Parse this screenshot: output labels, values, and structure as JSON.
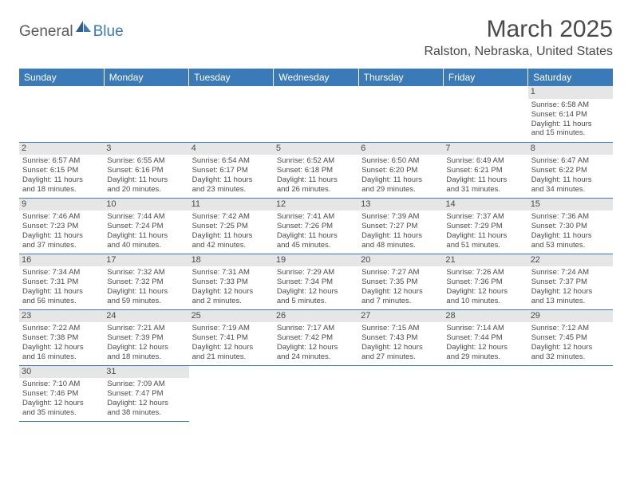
{
  "logo": {
    "general": "General",
    "blue": "Blue"
  },
  "title": "March 2025",
  "location": "Ralston, Nebraska, United States",
  "colors": {
    "header_bg": "#3a7ab8",
    "header_fg": "#ffffff",
    "daynum_bg": "#e6e6e6",
    "border": "#3a7ab8",
    "text": "#4a4a4a"
  },
  "typography": {
    "title_fontsize": 30,
    "location_fontsize": 16,
    "dayheader_fontsize": 12,
    "cell_fontsize": 9.5
  },
  "day_headers": [
    "Sunday",
    "Monday",
    "Tuesday",
    "Wednesday",
    "Thursday",
    "Friday",
    "Saturday"
  ],
  "weeks": [
    [
      null,
      null,
      null,
      null,
      null,
      null,
      {
        "n": "1",
        "sunrise": "6:58 AM",
        "sunset": "6:14 PM",
        "day_h": "11",
        "day_m": "15"
      }
    ],
    [
      {
        "n": "2",
        "sunrise": "6:57 AM",
        "sunset": "6:15 PM",
        "day_h": "11",
        "day_m": "18"
      },
      {
        "n": "3",
        "sunrise": "6:55 AM",
        "sunset": "6:16 PM",
        "day_h": "11",
        "day_m": "20"
      },
      {
        "n": "4",
        "sunrise": "6:54 AM",
        "sunset": "6:17 PM",
        "day_h": "11",
        "day_m": "23"
      },
      {
        "n": "5",
        "sunrise": "6:52 AM",
        "sunset": "6:18 PM",
        "day_h": "11",
        "day_m": "26"
      },
      {
        "n": "6",
        "sunrise": "6:50 AM",
        "sunset": "6:20 PM",
        "day_h": "11",
        "day_m": "29"
      },
      {
        "n": "7",
        "sunrise": "6:49 AM",
        "sunset": "6:21 PM",
        "day_h": "11",
        "day_m": "31"
      },
      {
        "n": "8",
        "sunrise": "6:47 AM",
        "sunset": "6:22 PM",
        "day_h": "11",
        "day_m": "34"
      }
    ],
    [
      {
        "n": "9",
        "sunrise": "7:46 AM",
        "sunset": "7:23 PM",
        "day_h": "11",
        "day_m": "37"
      },
      {
        "n": "10",
        "sunrise": "7:44 AM",
        "sunset": "7:24 PM",
        "day_h": "11",
        "day_m": "40"
      },
      {
        "n": "11",
        "sunrise": "7:42 AM",
        "sunset": "7:25 PM",
        "day_h": "11",
        "day_m": "42"
      },
      {
        "n": "12",
        "sunrise": "7:41 AM",
        "sunset": "7:26 PM",
        "day_h": "11",
        "day_m": "45"
      },
      {
        "n": "13",
        "sunrise": "7:39 AM",
        "sunset": "7:27 PM",
        "day_h": "11",
        "day_m": "48"
      },
      {
        "n": "14",
        "sunrise": "7:37 AM",
        "sunset": "7:29 PM",
        "day_h": "11",
        "day_m": "51"
      },
      {
        "n": "15",
        "sunrise": "7:36 AM",
        "sunset": "7:30 PM",
        "day_h": "11",
        "day_m": "53"
      }
    ],
    [
      {
        "n": "16",
        "sunrise": "7:34 AM",
        "sunset": "7:31 PM",
        "day_h": "11",
        "day_m": "56"
      },
      {
        "n": "17",
        "sunrise": "7:32 AM",
        "sunset": "7:32 PM",
        "day_h": "11",
        "day_m": "59"
      },
      {
        "n": "18",
        "sunrise": "7:31 AM",
        "sunset": "7:33 PM",
        "day_h": "12",
        "day_m": "2"
      },
      {
        "n": "19",
        "sunrise": "7:29 AM",
        "sunset": "7:34 PM",
        "day_h": "12",
        "day_m": "5"
      },
      {
        "n": "20",
        "sunrise": "7:27 AM",
        "sunset": "7:35 PM",
        "day_h": "12",
        "day_m": "7"
      },
      {
        "n": "21",
        "sunrise": "7:26 AM",
        "sunset": "7:36 PM",
        "day_h": "12",
        "day_m": "10"
      },
      {
        "n": "22",
        "sunrise": "7:24 AM",
        "sunset": "7:37 PM",
        "day_h": "12",
        "day_m": "13"
      }
    ],
    [
      {
        "n": "23",
        "sunrise": "7:22 AM",
        "sunset": "7:38 PM",
        "day_h": "12",
        "day_m": "16"
      },
      {
        "n": "24",
        "sunrise": "7:21 AM",
        "sunset": "7:39 PM",
        "day_h": "12",
        "day_m": "18"
      },
      {
        "n": "25",
        "sunrise": "7:19 AM",
        "sunset": "7:41 PM",
        "day_h": "12",
        "day_m": "21"
      },
      {
        "n": "26",
        "sunrise": "7:17 AM",
        "sunset": "7:42 PM",
        "day_h": "12",
        "day_m": "24"
      },
      {
        "n": "27",
        "sunrise": "7:15 AM",
        "sunset": "7:43 PM",
        "day_h": "12",
        "day_m": "27"
      },
      {
        "n": "28",
        "sunrise": "7:14 AM",
        "sunset": "7:44 PM",
        "day_h": "12",
        "day_m": "29"
      },
      {
        "n": "29",
        "sunrise": "7:12 AM",
        "sunset": "7:45 PM",
        "day_h": "12",
        "day_m": "32"
      }
    ],
    [
      {
        "n": "30",
        "sunrise": "7:10 AM",
        "sunset": "7:46 PM",
        "day_h": "12",
        "day_m": "35"
      },
      {
        "n": "31",
        "sunrise": "7:09 AM",
        "sunset": "7:47 PM",
        "day_h": "12",
        "day_m": "38"
      },
      null,
      null,
      null,
      null,
      null
    ]
  ],
  "labels": {
    "sunrise": "Sunrise:",
    "sunset": "Sunset:",
    "daylight_prefix": "Daylight:",
    "hours_word": "hours",
    "and_word": "and",
    "minutes_word": "minutes."
  }
}
